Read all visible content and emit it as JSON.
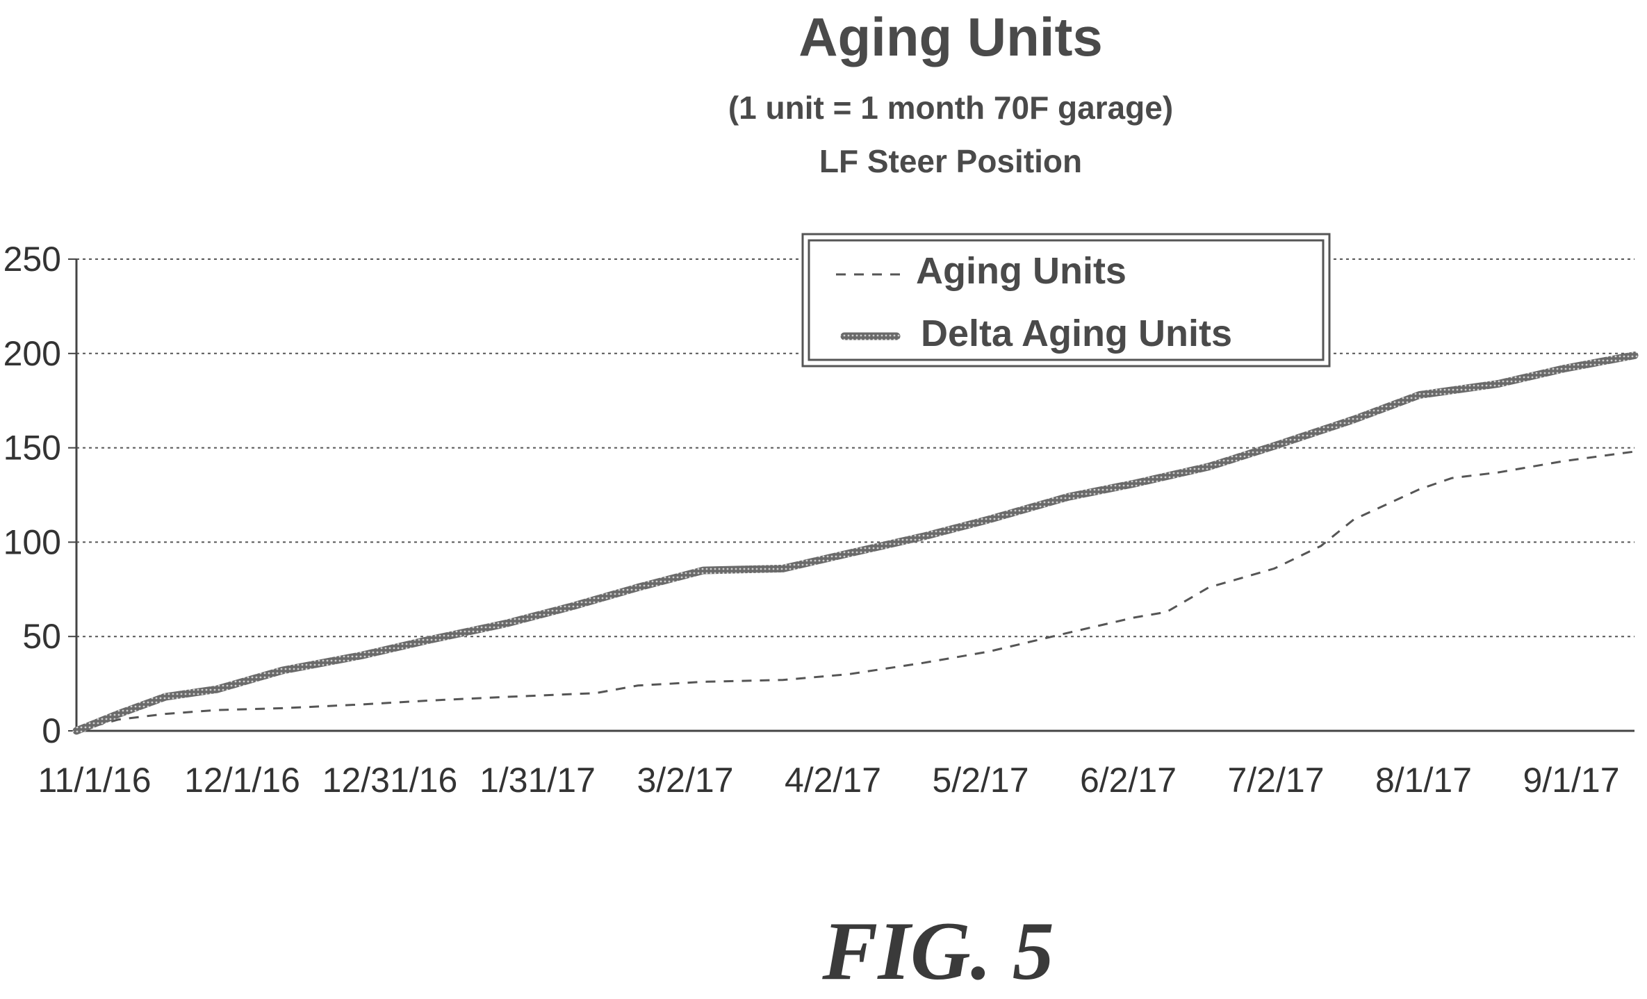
{
  "chart_data": {
    "type": "line",
    "title": "Aging Units",
    "subtitle": "(1 unit = 1 month 70F garage)",
    "subtitle2": "LF Steer Position",
    "figure_label": "FIG. 5",
    "x_tick_labels": [
      "11/1/16",
      "12/1/16",
      "12/31/16",
      "1/31/17",
      "3/2/17",
      "4/2/17",
      "5/2/17",
      "6/2/17",
      "7/2/17",
      "8/1/17",
      "9/1/17"
    ],
    "y_ticks": [
      0,
      50,
      100,
      150,
      200,
      250
    ],
    "ylim": [
      0,
      250
    ],
    "xlim": [
      "2016-11-01",
      "2017-09-30"
    ],
    "grid": true,
    "legend_position": "top-right",
    "series": [
      {
        "name": "Aging Units",
        "style": "dashed",
        "points": [
          [
            "2016-11-01",
            0
          ],
          [
            "2016-11-10",
            6
          ],
          [
            "2016-11-20",
            9
          ],
          [
            "2016-12-01",
            11
          ],
          [
            "2016-12-15",
            12
          ],
          [
            "2017-01-01",
            14
          ],
          [
            "2017-01-15",
            16
          ],
          [
            "2017-02-01",
            18
          ],
          [
            "2017-02-20",
            20
          ],
          [
            "2017-03-01",
            24
          ],
          [
            "2017-03-15",
            26
          ],
          [
            "2017-04-01",
            27
          ],
          [
            "2017-04-15",
            30
          ],
          [
            "2017-05-01",
            36
          ],
          [
            "2017-05-15",
            42
          ],
          [
            "2017-06-01",
            52
          ],
          [
            "2017-06-15",
            60
          ],
          [
            "2017-06-22",
            63
          ],
          [
            "2017-07-01",
            76
          ],
          [
            "2017-07-15",
            86
          ],
          [
            "2017-07-25",
            98
          ],
          [
            "2017-08-01",
            112
          ],
          [
            "2017-08-15",
            128
          ],
          [
            "2017-08-22",
            134
          ],
          [
            "2017-09-01",
            137
          ],
          [
            "2017-09-15",
            143
          ],
          [
            "2017-09-30",
            148
          ]
        ]
      },
      {
        "name": "Delta Aging Units",
        "style": "solid",
        "points": [
          [
            "2016-11-01",
            0
          ],
          [
            "2016-11-10",
            9
          ],
          [
            "2016-11-20",
            18
          ],
          [
            "2016-12-01",
            22
          ],
          [
            "2016-12-15",
            32
          ],
          [
            "2017-01-01",
            40
          ],
          [
            "2017-01-15",
            48
          ],
          [
            "2017-02-01",
            57
          ],
          [
            "2017-02-15",
            66
          ],
          [
            "2017-03-01",
            76
          ],
          [
            "2017-03-15",
            85
          ],
          [
            "2017-04-01",
            86
          ],
          [
            "2017-04-15",
            94
          ],
          [
            "2017-05-01",
            103
          ],
          [
            "2017-05-15",
            112
          ],
          [
            "2017-06-01",
            124
          ],
          [
            "2017-06-15",
            131
          ],
          [
            "2017-07-01",
            140
          ],
          [
            "2017-07-15",
            151
          ],
          [
            "2017-08-01",
            165
          ],
          [
            "2017-08-15",
            178
          ],
          [
            "2017-09-01",
            184
          ],
          [
            "2017-09-15",
            192
          ],
          [
            "2017-09-30",
            199
          ]
        ]
      }
    ]
  }
}
